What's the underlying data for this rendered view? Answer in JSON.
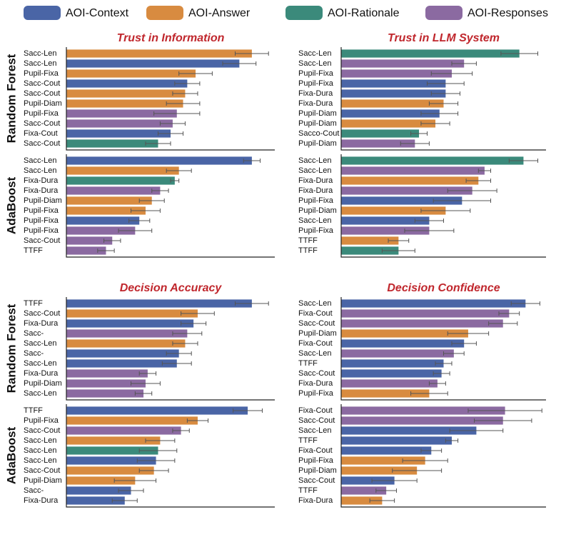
{
  "legend": [
    {
      "name": "AOI-Context",
      "color": "#4a65a6"
    },
    {
      "name": "AOI-Answer",
      "color": "#d88b40"
    },
    {
      "name": "AOI-Rationale",
      "color": "#3b8a7b"
    },
    {
      "name": "AOI-Responses",
      "color": "#8b6aa1"
    }
  ],
  "row_labels": [
    "Random Forest",
    "AdaBoost",
    "Random Forest",
    "AdaBoost"
  ],
  "chart_data": [
    {
      "type": "bar",
      "orientation": "horizontal",
      "title": "Trust in Information",
      "xlim": [
        0,
        1
      ],
      "categories": [
        "Sacc-Len",
        "Sacc-Len",
        "Pupil-Fixa",
        "Sacc-Cout",
        "Sacc-Cout",
        "Pupil-Diam",
        "Pupil-Fixa",
        "Sacc-Cout",
        "Fixa-Cout",
        "Sacc-Cout"
      ],
      "values": [
        0.89,
        0.83,
        0.62,
        0.58,
        0.57,
        0.56,
        0.53,
        0.51,
        0.5,
        0.44
      ],
      "errors": [
        0.08,
        0.08,
        0.08,
        0.06,
        0.06,
        0.08,
        0.11,
        0.06,
        0.06,
        0.06
      ],
      "colors": [
        "#d88b40",
        "#4a65a6",
        "#d88b40",
        "#4a65a6",
        "#d88b40",
        "#d88b40",
        "#8b6aa1",
        "#8b6aa1",
        "#4a65a6",
        "#3b8a7b"
      ]
    },
    {
      "type": "bar",
      "orientation": "horizontal",
      "title": "Trust in LLM System",
      "xlim": [
        0,
        1
      ],
      "categories": [
        "Sacc-Len",
        "Sacc-Len",
        "Pupil-Fixa",
        "Pupil-Fixa",
        "Fixa-Dura",
        "Fixa-Dura",
        "Pupil-Diam",
        "Pupil-Diam",
        "Sacco-Cout",
        "Pupil-Diam"
      ],
      "values": [
        0.87,
        0.6,
        0.54,
        0.51,
        0.51,
        0.5,
        0.48,
        0.46,
        0.38,
        0.36
      ],
      "errors": [
        0.09,
        0.06,
        0.1,
        0.09,
        0.07,
        0.07,
        0.09,
        0.07,
        0.04,
        0.07
      ],
      "colors": [
        "#3b8a7b",
        "#8b6aa1",
        "#8b6aa1",
        "#4a65a6",
        "#4a65a6",
        "#d88b40",
        "#4a65a6",
        "#d88b40",
        "#3b8a7b",
        "#8b6aa1"
      ]
    },
    {
      "type": "bar",
      "orientation": "horizontal",
      "xlim": [
        0,
        1
      ],
      "categories": [
        "Sacc-Len",
        "Sacc-Len",
        "Fixa-Dura",
        "Fixa-Dura",
        "Pupil-Diam",
        "Pupil-Fixa",
        "Pupil-Fixa",
        "Pupil-Fixa",
        "Sacc-Cout",
        "TTFF"
      ],
      "values": [
        0.89,
        0.54,
        0.52,
        0.45,
        0.41,
        0.38,
        0.35,
        0.33,
        0.22,
        0.19
      ],
      "errors": [
        0.04,
        0.06,
        0.02,
        0.04,
        0.06,
        0.07,
        0.05,
        0.08,
        0.04,
        0.04
      ],
      "colors": [
        "#4a65a6",
        "#d88b40",
        "#3b8a7b",
        "#8b6aa1",
        "#d88b40",
        "#d88b40",
        "#4a65a6",
        "#8b6aa1",
        "#8b6aa1",
        "#8b6aa1"
      ]
    },
    {
      "type": "bar",
      "orientation": "horizontal",
      "xlim": [
        0,
        1
      ],
      "categories": [
        "Sacc-Len",
        "Sacc-Len",
        "Fixa-Dura",
        "Fixa-Dura",
        "Pupil-Fixa",
        "Pupil-Diam",
        "Sacc-Len",
        "Pupil-Fixa",
        "TTFF",
        "TTFF"
      ],
      "values": [
        0.89,
        0.7,
        0.67,
        0.64,
        0.59,
        0.51,
        0.43,
        0.43,
        0.28,
        0.28
      ],
      "errors": [
        0.07,
        0.03,
        0.06,
        0.12,
        0.14,
        0.12,
        0.07,
        0.12,
        0.05,
        0.08
      ],
      "colors": [
        "#3b8a7b",
        "#8b6aa1",
        "#d88b40",
        "#8b6aa1",
        "#4a65a6",
        "#d88b40",
        "#4a65a6",
        "#8b6aa1",
        "#d88b40",
        "#3b8a7b"
      ]
    },
    {
      "type": "bar",
      "orientation": "horizontal",
      "title": "Decision Accuracy",
      "xlim": [
        0,
        1
      ],
      "categories": [
        "TTFF",
        "Sacc-Cout",
        "Fixa-Dura",
        "Sacc-",
        "Sacc-Len",
        "Sacc-",
        "Sacc-Len",
        "Fixa-Dura",
        "Pupil-Diam",
        "Sacc-Len"
      ],
      "values": [
        0.89,
        0.63,
        0.61,
        0.58,
        0.57,
        0.54,
        0.53,
        0.39,
        0.38,
        0.37
      ],
      "errors": [
        0.08,
        0.08,
        0.06,
        0.07,
        0.06,
        0.06,
        0.07,
        0.04,
        0.07,
        0.04
      ],
      "colors": [
        "#4a65a6",
        "#d88b40",
        "#4a65a6",
        "#8b6aa1",
        "#d88b40",
        "#4a65a6",
        "#4a65a6",
        "#8b6aa1",
        "#8b6aa1",
        "#8b6aa1"
      ]
    },
    {
      "type": "bar",
      "orientation": "horizontal",
      "title": "Decision Confidence",
      "xlim": [
        0,
        1
      ],
      "categories": [
        "Sacc-Len",
        "Fixa-Cout",
        "Sacc-Cout",
        "Pupil-Diam",
        "Fixa-Cout",
        "Sacc-Len",
        "TTFF",
        "Sacc-Cout",
        "Fixa-Dura",
        "Pupil-Fixa"
      ],
      "values": [
        0.9,
        0.82,
        0.79,
        0.62,
        0.6,
        0.55,
        0.5,
        0.49,
        0.47,
        0.43
      ],
      "errors": [
        0.07,
        0.05,
        0.07,
        0.1,
        0.06,
        0.05,
        0.04,
        0.04,
        0.04,
        0.09
      ],
      "colors": [
        "#4a65a6",
        "#8b6aa1",
        "#8b6aa1",
        "#d88b40",
        "#4a65a6",
        "#8b6aa1",
        "#4a65a6",
        "#4a65a6",
        "#8b6aa1",
        "#d88b40"
      ]
    },
    {
      "type": "bar",
      "orientation": "horizontal",
      "xlim": [
        0,
        1
      ],
      "categories": [
        "TTFF",
        "Pupil-Fixa",
        "Sacc-Cout",
        "Sacc-Len",
        "Sacc-Len",
        "Sacc-Len",
        "Sacc-Cout",
        "Pupil-Diam",
        "Sacc-",
        "Fixa-Dura"
      ],
      "values": [
        0.87,
        0.63,
        0.55,
        0.45,
        0.44,
        0.43,
        0.42,
        0.33,
        0.31,
        0.28
      ],
      "errors": [
        0.07,
        0.05,
        0.04,
        0.07,
        0.09,
        0.09,
        0.07,
        0.1,
        0.06,
        0.06
      ],
      "colors": [
        "#4a65a6",
        "#d88b40",
        "#8b6aa1",
        "#d88b40",
        "#3b8a7b",
        "#4a65a6",
        "#d88b40",
        "#d88b40",
        "#4a65a6",
        "#4a65a6"
      ]
    },
    {
      "type": "bar",
      "orientation": "horizontal",
      "xlim": [
        0,
        1
      ],
      "categories": [
        "Fixa-Cout",
        "Sacc-Cout",
        "Sacc-Len",
        "TTFF",
        "Fixa-Cout",
        "Pupil-Fixa",
        "Pupil-Diam",
        "Sacc-Cout",
        "TTFF",
        "Fixa-Dura"
      ],
      "values": [
        0.8,
        0.79,
        0.66,
        0.54,
        0.44,
        0.41,
        0.37,
        0.26,
        0.22,
        0.2
      ],
      "errors": [
        0.18,
        0.14,
        0.13,
        0.03,
        0.05,
        0.11,
        0.12,
        0.11,
        0.05,
        0.06
      ],
      "colors": [
        "#8b6aa1",
        "#8b6aa1",
        "#4a65a6",
        "#4a65a6",
        "#4a65a6",
        "#d88b40",
        "#d88b40",
        "#4a65a6",
        "#8b6aa1",
        "#d88b40"
      ]
    }
  ]
}
